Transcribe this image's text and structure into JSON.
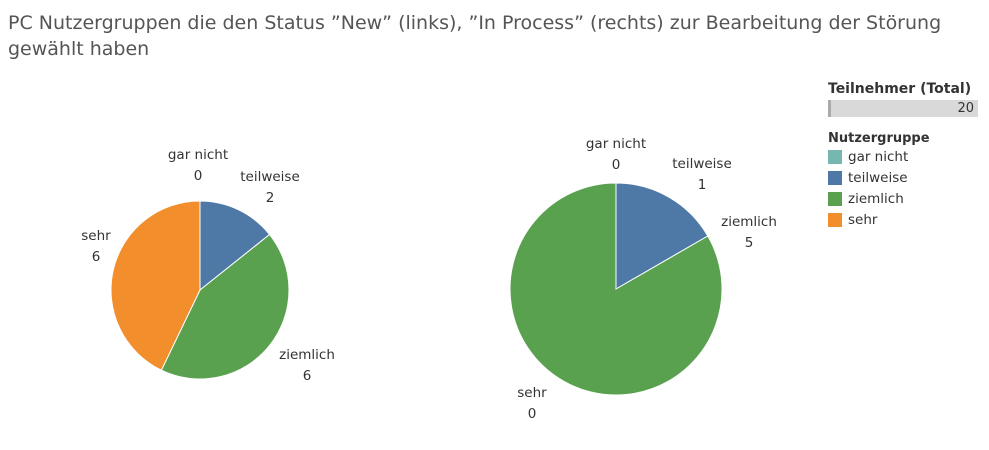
{
  "title": "PC Nutzergruppen die den Status ”New” (links), ”In Process” (rechts) zur Bearbeitung der Störung gewählt haben",
  "legend": {
    "total_label": "Teilnehmer (Total)",
    "total_value": "20",
    "total_fraction": 1.0,
    "group_title": "Nutzergruppe",
    "items": [
      {
        "label": "gar nicht",
        "color": "#76b7b2"
      },
      {
        "label": "teilweise",
        "color": "#4e79a7"
      },
      {
        "label": "ziemlich",
        "color": "#59a14f"
      },
      {
        "label": "sehr",
        "color": "#f28e2b"
      }
    ]
  },
  "chart_data": [
    {
      "type": "pie",
      "categories": [
        "gar nicht",
        "teilweise",
        "ziemlich",
        "sehr"
      ],
      "values": [
        0,
        2,
        6,
        6
      ],
      "colors": [
        "#76b7b2",
        "#4e79a7",
        "#59a14f",
        "#f28e2b"
      ],
      "start": "12 o'clock",
      "direction": "clockwise"
    },
    {
      "type": "pie",
      "categories": [
        "gar nicht",
        "teilweise",
        "ziemlich",
        "sehr"
      ],
      "values": [
        0,
        1,
        5,
        0
      ],
      "colors": [
        "#76b7b2",
        "#4e79a7",
        "#59a14f",
        "#f28e2b"
      ],
      "start": "12 o'clock",
      "direction": "clockwise"
    }
  ]
}
